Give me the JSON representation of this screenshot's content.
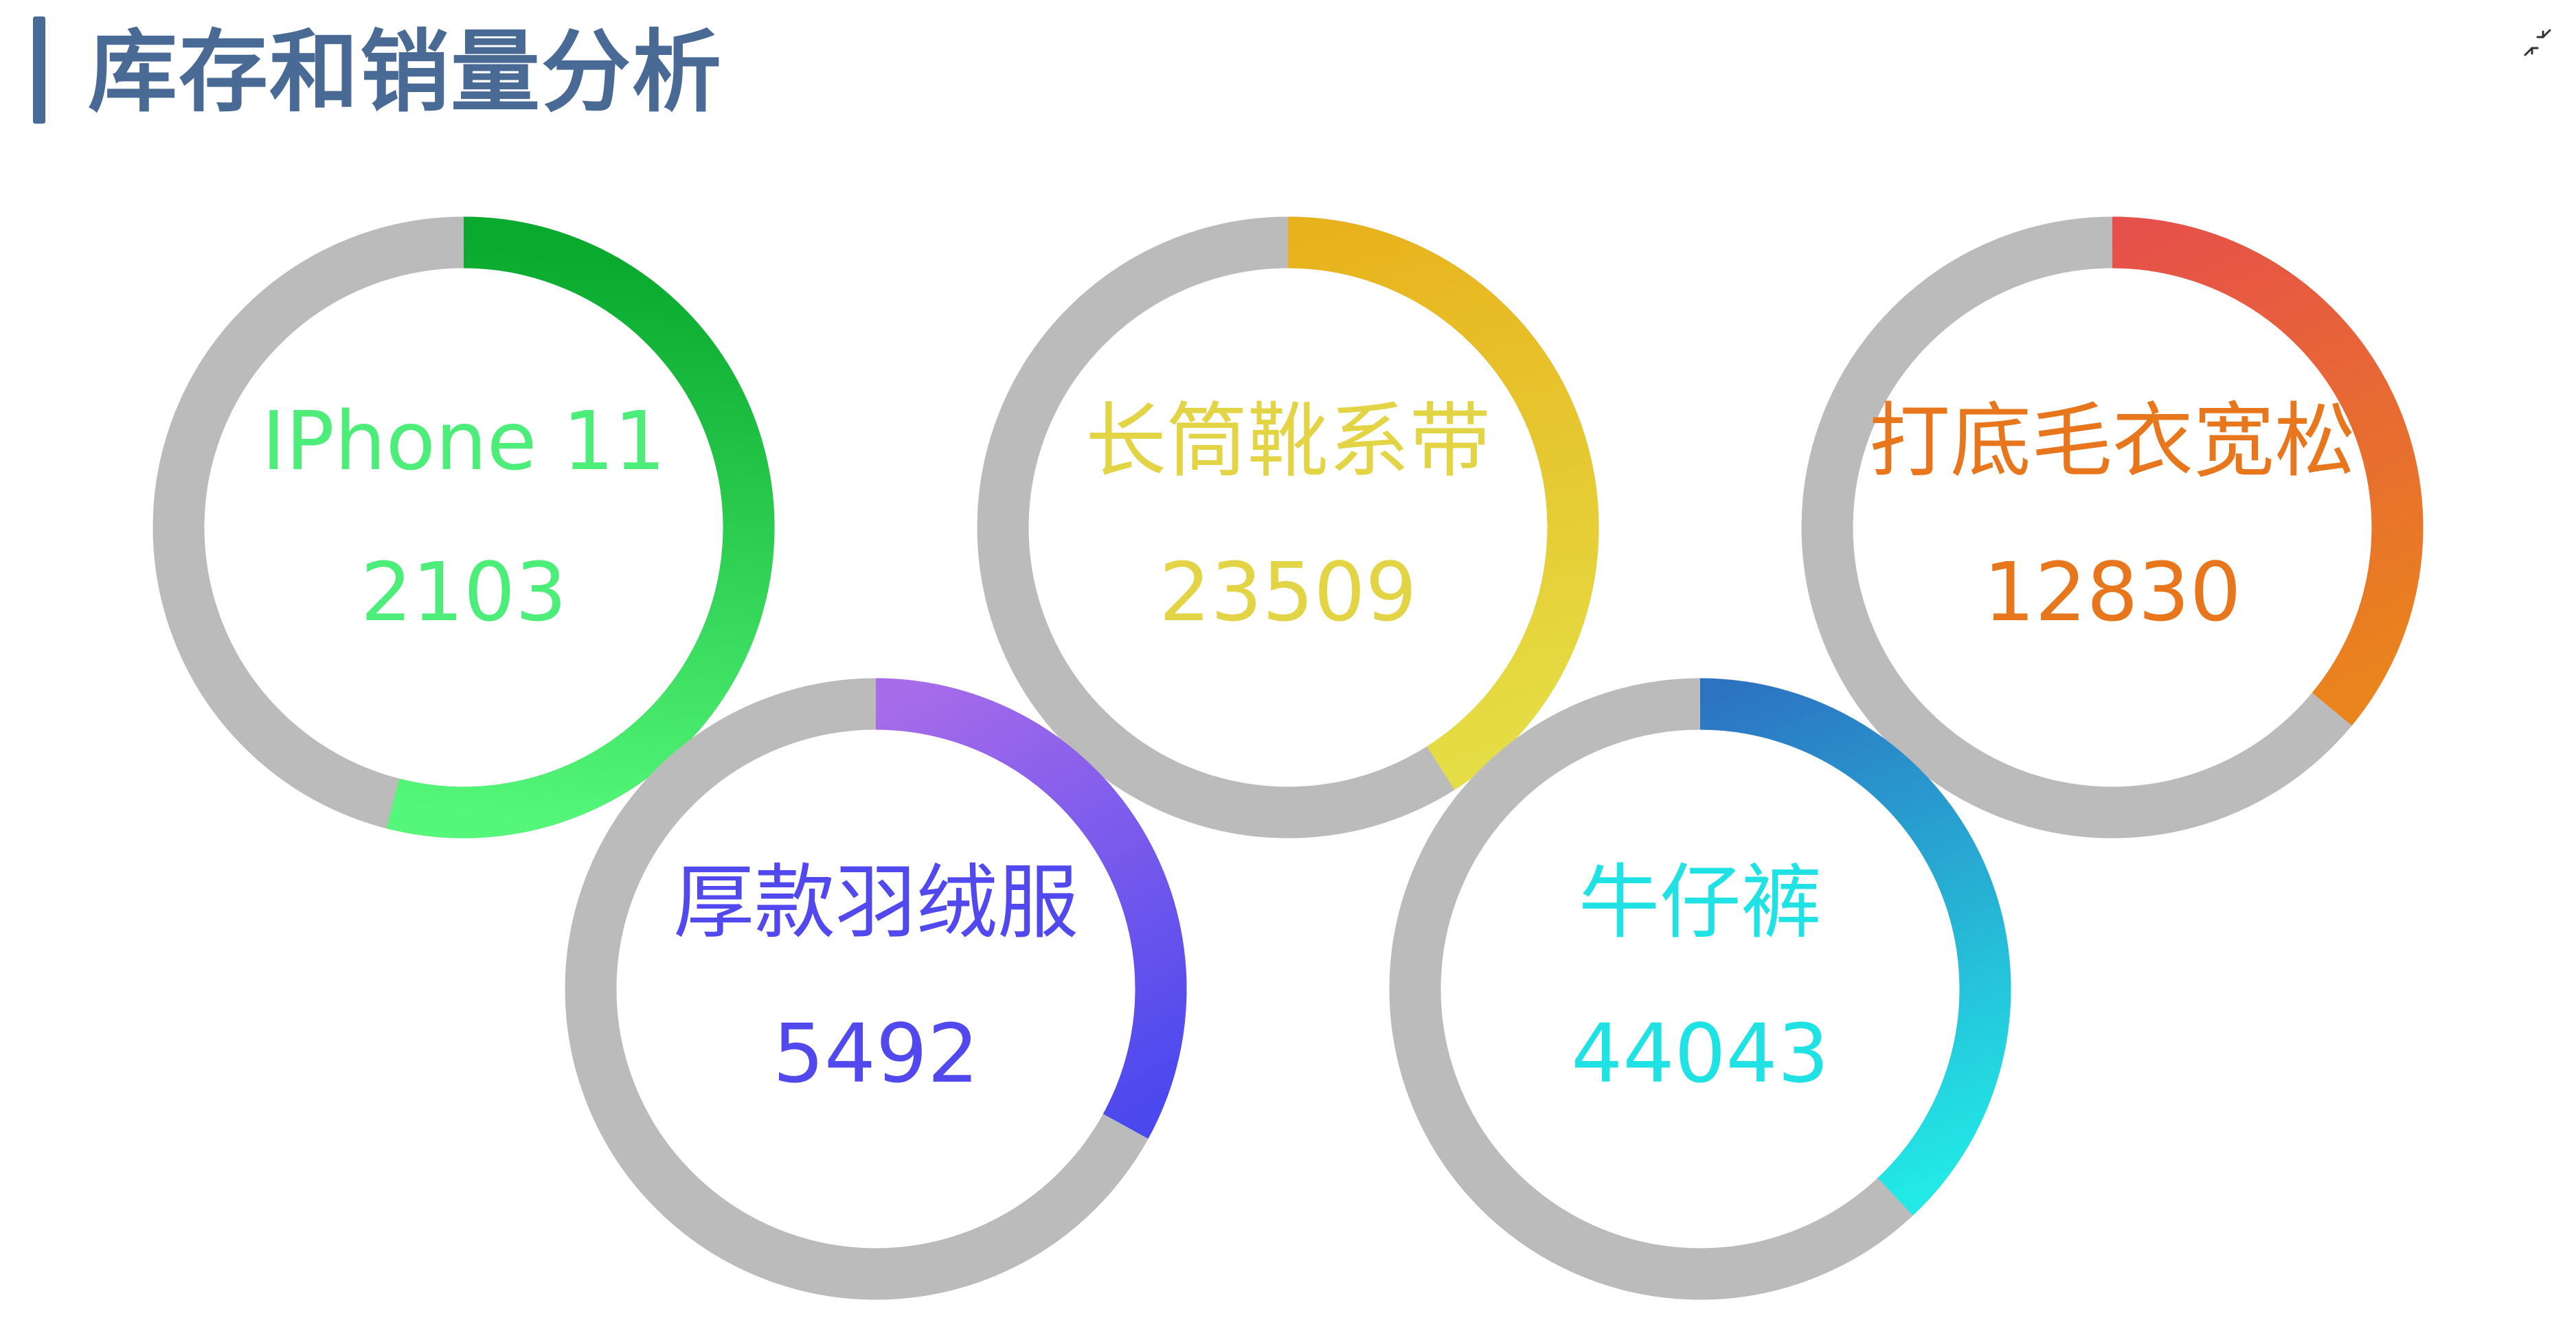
{
  "header": {
    "title": "库存和销量分析"
  },
  "controls": {
    "collapse_icon": "collapse-arrows-icon"
  },
  "colors": {
    "title": "#4a6a96",
    "track": "#bbbbbb",
    "background": "#ffffff"
  },
  "chart_data": {
    "type": "gauge",
    "title": "库存和销量分析",
    "items": [
      {
        "name": "IPhone 11",
        "value": 2103,
        "progress": 0.54,
        "label_color": "#4ded7a",
        "gradient": [
          "#0aaa2e",
          "#55f77a"
        ]
      },
      {
        "name": "长筒靴系带",
        "value": 23509,
        "progress": 0.41,
        "label_color": "#e2d444",
        "gradient": [
          "#e8b21c",
          "#e5dd45"
        ]
      },
      {
        "name": "打底毛衣宽松",
        "value": 12830,
        "progress": 0.36,
        "label_color": "#e8761c",
        "gradient": [
          "#e6504a",
          "#ea841c"
        ]
      },
      {
        "name": "厚款羽绒服",
        "value": 5492,
        "progress": 0.33,
        "label_color": "#5148ee",
        "gradient": [
          "#a86cea",
          "#4a48ee"
        ]
      },
      {
        "name": "牛仔裤",
        "value": 44043,
        "progress": 0.38,
        "label_color": "#20e2e5",
        "gradient": [
          "#2c74c2",
          "#22e8e6"
        ]
      }
    ]
  }
}
